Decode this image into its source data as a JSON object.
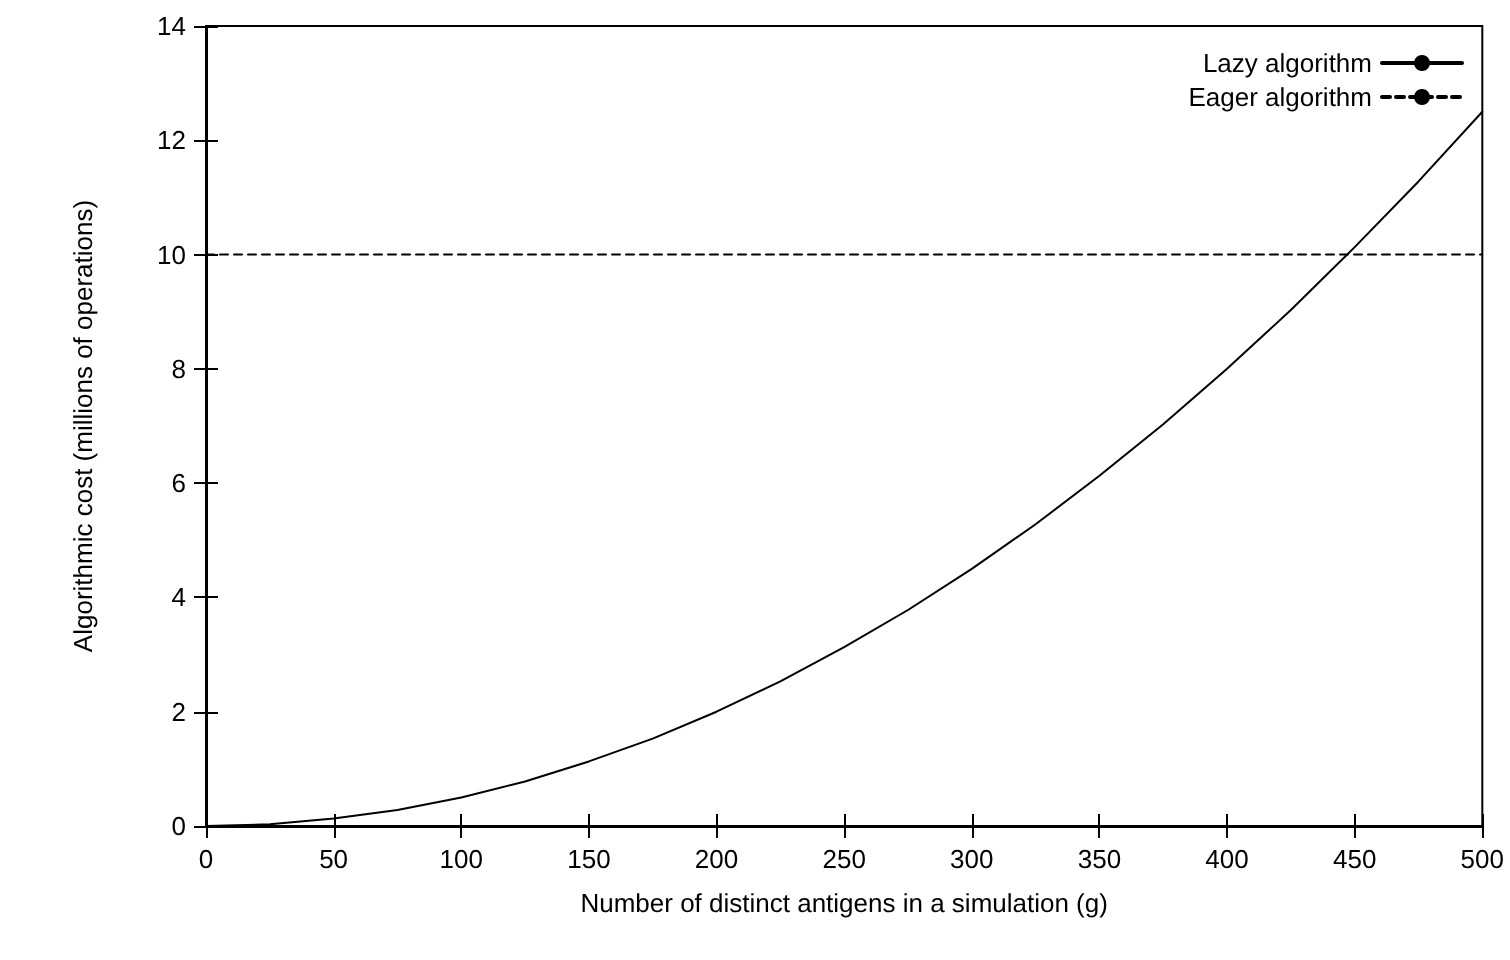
{
  "chart_data": {
    "type": "line",
    "xlabel": "Number of distinct antigens in a simulation (g)",
    "ylabel": "Algorithmic cost (millions of operations)",
    "x": [
      0,
      25,
      50,
      75,
      100,
      125,
      150,
      175,
      200,
      225,
      250,
      275,
      300,
      325,
      350,
      375,
      400,
      425,
      450,
      475,
      500
    ],
    "series": [
      {
        "name": "Lazy algorithm",
        "color": "#000000",
        "line_style": "solid",
        "values": [
          0,
          0.03,
          0.13,
          0.28,
          0.5,
          0.78,
          1.13,
          1.53,
          2,
          2.53,
          3.13,
          3.78,
          4.5,
          5.28,
          6.13,
          7.03,
          8,
          9.03,
          10.13,
          11.28,
          12.5
        ]
      },
      {
        "name": "Eager algorithm",
        "color": "#000000",
        "line_style": "dashed",
        "x": [
          0,
          500
        ],
        "values": [
          10,
          10
        ]
      }
    ],
    "xlim": [
      0,
      500
    ],
    "xticks": [
      0,
      50,
      100,
      150,
      200,
      250,
      300,
      350,
      400,
      450,
      500
    ],
    "ylim": [
      0,
      14
    ],
    "yticks": [
      0,
      2,
      4,
      6,
      8,
      10,
      12,
      14
    ],
    "grid": false,
    "legend": "top right",
    "marker": "none"
  }
}
